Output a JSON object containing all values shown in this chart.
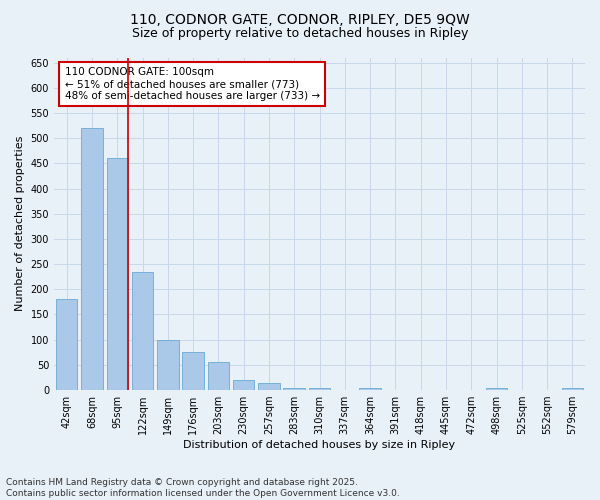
{
  "title": "110, CODNOR GATE, CODNOR, RIPLEY, DE5 9QW",
  "subtitle": "Size of property relative to detached houses in Ripley",
  "xlabel": "Distribution of detached houses by size in Ripley",
  "ylabel": "Number of detached properties",
  "categories": [
    "42sqm",
    "68sqm",
    "95sqm",
    "122sqm",
    "149sqm",
    "176sqm",
    "203sqm",
    "230sqm",
    "257sqm",
    "283sqm",
    "310sqm",
    "337sqm",
    "364sqm",
    "391sqm",
    "418sqm",
    "445sqm",
    "472sqm",
    "498sqm",
    "525sqm",
    "552sqm",
    "579sqm"
  ],
  "values": [
    180,
    520,
    460,
    235,
    100,
    75,
    55,
    20,
    15,
    5,
    5,
    0,
    5,
    0,
    0,
    0,
    0,
    5,
    0,
    0,
    5
  ],
  "bar_color": "#aac8e8",
  "bar_edge_color": "#6aaad4",
  "grid_color": "#c8d8ea",
  "background_color": "#e8f0f8",
  "vline_x_index": 2,
  "vline_color": "#cc0000",
  "annotation_text": "110 CODNOR GATE: 100sqm\n← 51% of detached houses are smaller (773)\n48% of semi-detached houses are larger (733) →",
  "annotation_box_color": "#ffffff",
  "annotation_box_edge": "#cc0000",
  "ylim": [
    0,
    660
  ],
  "yticks": [
    0,
    50,
    100,
    150,
    200,
    250,
    300,
    350,
    400,
    450,
    500,
    550,
    600,
    650
  ],
  "footer": "Contains HM Land Registry data © Crown copyright and database right 2025.\nContains public sector information licensed under the Open Government Licence v3.0.",
  "title_fontsize": 10,
  "subtitle_fontsize": 9,
  "axis_label_fontsize": 8,
  "tick_fontsize": 7,
  "annotation_fontsize": 7.5,
  "footer_fontsize": 6.5
}
